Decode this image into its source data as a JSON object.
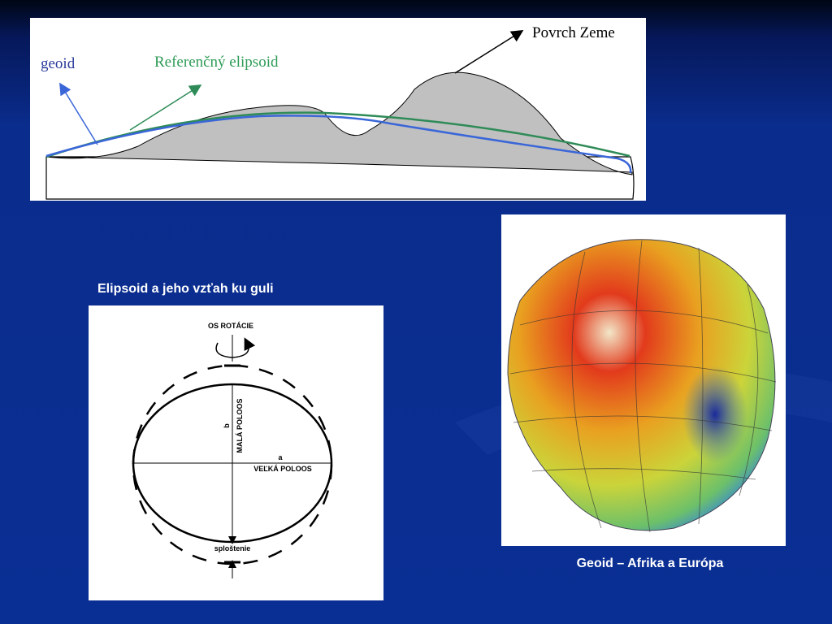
{
  "profile_diagram": {
    "labels": {
      "surface": "Povrch Zeme",
      "geoid": "geoid",
      "ellipsoid": "Referenčný elipsoid"
    }
  },
  "ellipse_diagram": {
    "caption": "Elipsoid a jeho vzťah ku guli",
    "labels": {
      "rotation_axis": "OS ROTÁCIE",
      "semi_minor": "MALÁ POLOOS",
      "b": "b",
      "a": "a",
      "semi_major": "VEĽKÁ POLOOS",
      "flattening": "sploštenie"
    }
  },
  "globe_image": {
    "caption": "Geoid – Afrika a Európa"
  }
}
